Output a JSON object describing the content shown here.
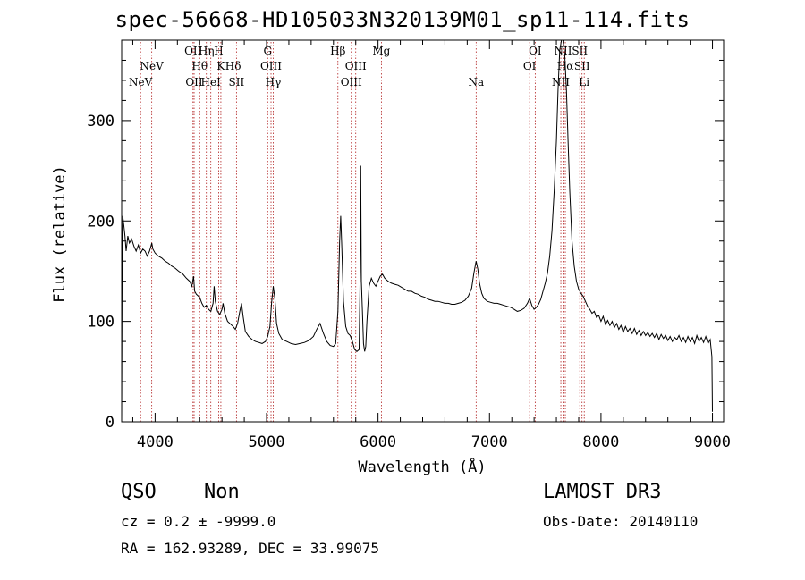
{
  "header": {
    "title": "spec-56668-HD105033N320139M01_sp11-114.fits"
  },
  "info": {
    "class_label": "QSO",
    "subclass_label": "Non",
    "survey": "LAMOST DR3",
    "redshift_line": "cz = 0.2 ± -9999.0",
    "obs_date": "Obs-Date: 20140110",
    "coords_line": "RA = 162.93289, DEC =  33.99075"
  },
  "chart_data": {
    "type": "line",
    "xlabel": "Wavelength (Å)",
    "ylabel": "Flux (relative)",
    "xlim": [
      3700,
      9100
    ],
    "ylim": [
      0,
      380
    ],
    "xticks": [
      4000,
      5000,
      6000,
      7000,
      8000,
      9000
    ],
    "yticks": [
      0,
      100,
      200,
      300
    ],
    "colors": {
      "spectrum": "#000000",
      "lines": "#b22222"
    },
    "line_markers": [
      {
        "wl": 3870,
        "label": "NeV",
        "row": 3
      },
      {
        "wl": 3970,
        "label": "NeV",
        "row": 2
      },
      {
        "wl": 4340,
        "label": "OII",
        "row": 1
      },
      {
        "wl": 4350,
        "label": "OII",
        "row": 3
      },
      {
        "wl": 4400,
        "label": "Hθ",
        "row": 2
      },
      {
        "wl": 4460,
        "label": "Hη",
        "row": 1
      },
      {
        "wl": 4500,
        "label": "HeI",
        "row": 3
      },
      {
        "wl": 4570,
        "label": "H",
        "row": 1
      },
      {
        "wl": 4590,
        "label": "K",
        "row": 2
      },
      {
        "wl": 4700,
        "label": "Hδ",
        "row": 2
      },
      {
        "wl": 4730,
        "label": "SII",
        "row": 3
      },
      {
        "wl": 5010,
        "label": "G",
        "row": 1
      },
      {
        "wl": 5040,
        "label": "OIII",
        "row": 2
      },
      {
        "wl": 5060,
        "label": "Hγ",
        "row": 3
      },
      {
        "wl": 5640,
        "label": "Hβ",
        "row": 1
      },
      {
        "wl": 5760,
        "label": "OIII",
        "row": 3
      },
      {
        "wl": 5800,
        "label": "OIII",
        "row": 2
      },
      {
        "wl": 6030,
        "label": "Mg",
        "row": 1
      },
      {
        "wl": 6880,
        "label": "Na",
        "row": 3
      },
      {
        "wl": 7360,
        "label": "OI",
        "row": 2
      },
      {
        "wl": 7410,
        "label": "OI",
        "row": 1
      },
      {
        "wl": 7640,
        "label": "NII",
        "row": 3
      },
      {
        "wl": 7660,
        "label": "NII",
        "row": 1
      },
      {
        "wl": 7680,
        "label": "Hα",
        "row": 2
      },
      {
        "wl": 7810,
        "label": "SII",
        "row": 1
      },
      {
        "wl": 7830,
        "label": "SII",
        "row": 2
      },
      {
        "wl": 7850,
        "label": "Li",
        "row": 3
      }
    ],
    "series": [
      {
        "points": [
          [
            3700,
            2
          ],
          [
            3704,
            140
          ],
          [
            3710,
            205
          ],
          [
            3720,
            195
          ],
          [
            3730,
            185
          ],
          [
            3740,
            170
          ],
          [
            3755,
            185
          ],
          [
            3770,
            178
          ],
          [
            3790,
            182
          ],
          [
            3810,
            175
          ],
          [
            3830,
            170
          ],
          [
            3850,
            176
          ],
          [
            3870,
            168
          ],
          [
            3890,
            172
          ],
          [
            3910,
            170
          ],
          [
            3930,
            165
          ],
          [
            3950,
            170
          ],
          [
            3970,
            178
          ],
          [
            3980,
            172
          ],
          [
            4000,
            168
          ],
          [
            4030,
            165
          ],
          [
            4060,
            163
          ],
          [
            4090,
            160
          ],
          [
            4120,
            158
          ],
          [
            4150,
            155
          ],
          [
            4180,
            153
          ],
          [
            4210,
            150
          ],
          [
            4250,
            147
          ],
          [
            4280,
            143
          ],
          [
            4310,
            140
          ],
          [
            4330,
            135
          ],
          [
            4345,
            145
          ],
          [
            4355,
            130
          ],
          [
            4370,
            127
          ],
          [
            4400,
            124
          ],
          [
            4420,
            118
          ],
          [
            4440,
            114
          ],
          [
            4460,
            116
          ],
          [
            4480,
            112
          ],
          [
            4500,
            110
          ],
          [
            4520,
            118
          ],
          [
            4530,
            135
          ],
          [
            4540,
            120
          ],
          [
            4560,
            110
          ],
          [
            4580,
            107
          ],
          [
            4600,
            112
          ],
          [
            4610,
            118
          ],
          [
            4625,
            108
          ],
          [
            4650,
            100
          ],
          [
            4680,
            97
          ],
          [
            4700,
            95
          ],
          [
            4720,
            92
          ],
          [
            4740,
            98
          ],
          [
            4760,
            110
          ],
          [
            4775,
            118
          ],
          [
            4790,
            105
          ],
          [
            4810,
            90
          ],
          [
            4840,
            85
          ],
          [
            4870,
            82
          ],
          [
            4900,
            80
          ],
          [
            4930,
            79
          ],
          [
            4960,
            78
          ],
          [
            4990,
            80
          ],
          [
            5010,
            85
          ],
          [
            5030,
            95
          ],
          [
            5045,
            118
          ],
          [
            5060,
            135
          ],
          [
            5075,
            122
          ],
          [
            5090,
            98
          ],
          [
            5110,
            88
          ],
          [
            5140,
            82
          ],
          [
            5180,
            80
          ],
          [
            5220,
            78
          ],
          [
            5260,
            77
          ],
          [
            5300,
            78
          ],
          [
            5340,
            79
          ],
          [
            5380,
            81
          ],
          [
            5420,
            85
          ],
          [
            5450,
            92
          ],
          [
            5480,
            98
          ],
          [
            5510,
            88
          ],
          [
            5540,
            80
          ],
          [
            5570,
            76
          ],
          [
            5600,
            75
          ],
          [
            5620,
            78
          ],
          [
            5640,
            110
          ],
          [
            5655,
            180
          ],
          [
            5665,
            205
          ],
          [
            5675,
            175
          ],
          [
            5690,
            120
          ],
          [
            5710,
            95
          ],
          [
            5730,
            88
          ],
          [
            5750,
            86
          ],
          [
            5770,
            80
          ],
          [
            5790,
            72
          ],
          [
            5810,
            70
          ],
          [
            5830,
            72
          ],
          [
            5840,
            150
          ],
          [
            5845,
            255
          ],
          [
            5850,
            140
          ],
          [
            5860,
            110
          ],
          [
            5870,
            78
          ],
          [
            5880,
            70
          ],
          [
            5890,
            75
          ],
          [
            5900,
            100
          ],
          [
            5920,
            135
          ],
          [
            5940,
            143
          ],
          [
            5960,
            138
          ],
          [
            5980,
            135
          ],
          [
            6000,
            140
          ],
          [
            6020,
            145
          ],
          [
            6040,
            147
          ],
          [
            6060,
            143
          ],
          [
            6090,
            140
          ],
          [
            6120,
            138
          ],
          [
            6150,
            137
          ],
          [
            6180,
            136
          ],
          [
            6210,
            134
          ],
          [
            6240,
            132
          ],
          [
            6270,
            130
          ],
          [
            6300,
            130
          ],
          [
            6330,
            128
          ],
          [
            6360,
            127
          ],
          [
            6390,
            125
          ],
          [
            6420,
            124
          ],
          [
            6450,
            122
          ],
          [
            6480,
            121
          ],
          [
            6510,
            120
          ],
          [
            6540,
            120
          ],
          [
            6570,
            119
          ],
          [
            6600,
            118
          ],
          [
            6630,
            118
          ],
          [
            6660,
            117
          ],
          [
            6690,
            117
          ],
          [
            6720,
            118
          ],
          [
            6750,
            119
          ],
          [
            6780,
            121
          ],
          [
            6810,
            125
          ],
          [
            6840,
            133
          ],
          [
            6860,
            148
          ],
          [
            6880,
            160
          ],
          [
            6895,
            152
          ],
          [
            6910,
            138
          ],
          [
            6930,
            128
          ],
          [
            6950,
            123
          ],
          [
            6980,
            120
          ],
          [
            7010,
            119
          ],
          [
            7040,
            118
          ],
          [
            7070,
            118
          ],
          [
            7100,
            117
          ],
          [
            7130,
            116
          ],
          [
            7160,
            115
          ],
          [
            7190,
            114
          ],
          [
            7220,
            112
          ],
          [
            7250,
            110
          ],
          [
            7280,
            111
          ],
          [
            7310,
            113
          ],
          [
            7340,
            118
          ],
          [
            7360,
            123
          ],
          [
            7380,
            116
          ],
          [
            7400,
            112
          ],
          [
            7420,
            114
          ],
          [
            7440,
            117
          ],
          [
            7460,
            122
          ],
          [
            7480,
            130
          ],
          [
            7500,
            138
          ],
          [
            7520,
            148
          ],
          [
            7540,
            165
          ],
          [
            7560,
            190
          ],
          [
            7580,
            230
          ],
          [
            7600,
            280
          ],
          [
            7615,
            330
          ],
          [
            7630,
            370
          ],
          [
            7645,
            380
          ],
          [
            7660,
            380
          ],
          [
            7675,
            365
          ],
          [
            7690,
            330
          ],
          [
            7705,
            280
          ],
          [
            7720,
            230
          ],
          [
            7740,
            180
          ],
          [
            7760,
            155
          ],
          [
            7780,
            140
          ],
          [
            7800,
            132
          ],
          [
            7820,
            128
          ],
          [
            7840,
            125
          ],
          [
            7860,
            120
          ],
          [
            7880,
            115
          ],
          [
            7900,
            112
          ],
          [
            7920,
            108
          ],
          [
            7940,
            110
          ],
          [
            7960,
            104
          ],
          [
            7980,
            106
          ],
          [
            8000,
            100
          ],
          [
            8020,
            105
          ],
          [
            8040,
            97
          ],
          [
            8060,
            101
          ],
          [
            8080,
            96
          ],
          [
            8100,
            100
          ],
          [
            8120,
            94
          ],
          [
            8140,
            98
          ],
          [
            8160,
            92
          ],
          [
            8180,
            96
          ],
          [
            8200,
            89
          ],
          [
            8220,
            95
          ],
          [
            8240,
            90
          ],
          [
            8260,
            93
          ],
          [
            8280,
            88
          ],
          [
            8300,
            93
          ],
          [
            8320,
            87
          ],
          [
            8340,
            91
          ],
          [
            8360,
            86
          ],
          [
            8380,
            90
          ],
          [
            8400,
            86
          ],
          [
            8420,
            89
          ],
          [
            8440,
            85
          ],
          [
            8460,
            88
          ],
          [
            8480,
            84
          ],
          [
            8500,
            88
          ],
          [
            8520,
            82
          ],
          [
            8540,
            87
          ],
          [
            8560,
            83
          ],
          [
            8580,
            86
          ],
          [
            8600,
            81
          ],
          [
            8620,
            85
          ],
          [
            8640,
            80
          ],
          [
            8660,
            84
          ],
          [
            8680,
            82
          ],
          [
            8700,
            86
          ],
          [
            8720,
            80
          ],
          [
            8740,
            84
          ],
          [
            8760,
            79
          ],
          [
            8780,
            85
          ],
          [
            8800,
            80
          ],
          [
            8820,
            84
          ],
          [
            8840,
            78
          ],
          [
            8860,
            86
          ],
          [
            8880,
            80
          ],
          [
            8900,
            84
          ],
          [
            8920,
            79
          ],
          [
            8940,
            85
          ],
          [
            8960,
            78
          ],
          [
            8980,
            82
          ],
          [
            8995,
            65
          ],
          [
            9000,
            10
          ]
        ]
      }
    ]
  }
}
